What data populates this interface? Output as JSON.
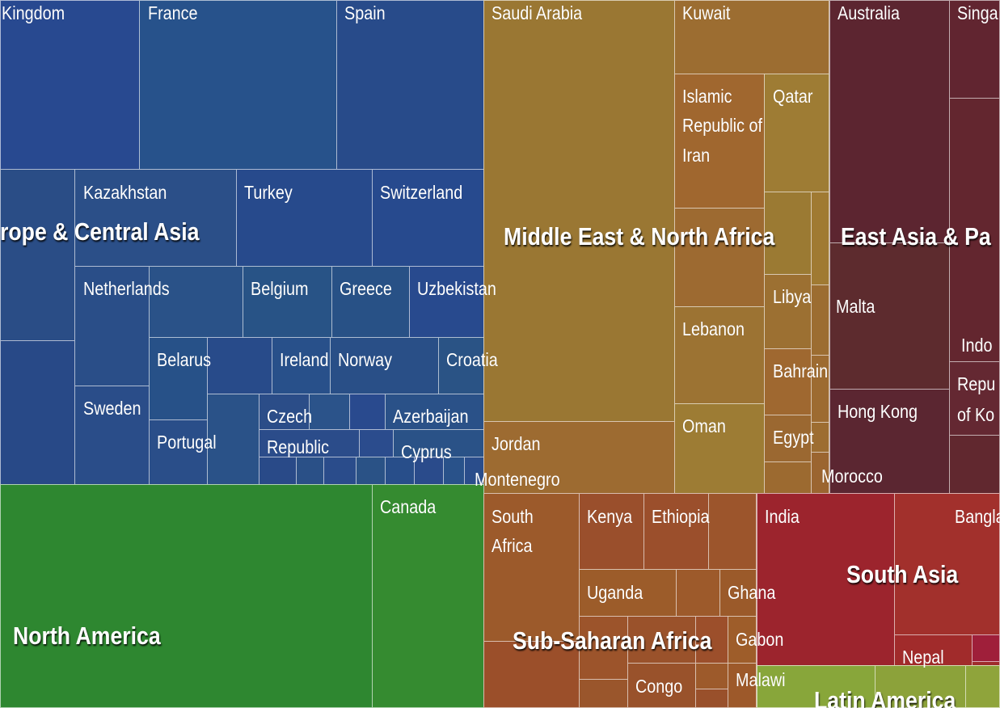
{
  "chart_data": {
    "type": "treemap",
    "title": "",
    "regions": [
      {
        "name": "Europe & Central Asia",
        "display": "rope & Central Asia",
        "countries": [
          "Kingdom",
          "France",
          "Spain",
          "Kazakhstan",
          "Turkey",
          "Switzerland",
          "Netherlands",
          "Belgium",
          "Greece",
          "Uzbekistan",
          "Sweden",
          "Belarus",
          "Ireland",
          "Norway",
          "Croatia",
          "Portugal",
          "Czech Republic",
          "Azerbaijan",
          "Cyprus",
          "Montenegro"
        ]
      },
      {
        "name": "Middle East & North Africa",
        "display": "Middle East & North Africa",
        "countries": [
          "Saudi Arabia",
          "Kuwait",
          "Islamic Republic of Iran",
          "Qatar",
          "Libya",
          "Lebanon",
          "Bahrain",
          "Oman",
          "Egypt",
          "Jordan",
          "Morocco"
        ]
      },
      {
        "name": "East Asia & Pacific",
        "display": "East Asia & Pa",
        "countries": [
          "Australia",
          "Singa",
          "Malta",
          "Indo",
          "Repu of Ko",
          "Hong Kong"
        ]
      },
      {
        "name": "North America",
        "display": "North America",
        "countries": [
          "Canada"
        ]
      },
      {
        "name": "Sub-Saharan Africa",
        "display": "Sub-Saharan Africa",
        "countries": [
          "South Africa",
          "Kenya",
          "Ethiopia",
          "Uganda",
          "Ghana",
          "Gabon",
          "Congo",
          "Malawi"
        ]
      },
      {
        "name": "South Asia",
        "display": "South Asia",
        "countries": [
          "India",
          "Bangla",
          "Nepal"
        ]
      },
      {
        "name": "Latin America",
        "display": "Latin America",
        "countries": []
      }
    ],
    "labels": {
      "kingdom": "Kingdom",
      "france": "France",
      "spain": "Spain",
      "kazakhstan": "Kazakhstan",
      "turkey": "Turkey",
      "switzerland": "Switzerland",
      "netherlands": "Netherlands",
      "belgium": "Belgium",
      "greece": "Greece",
      "uzbekistan": "Uzbekistan",
      "sweden": "Sweden",
      "belarus": "Belarus",
      "ireland": "Ireland",
      "norway": "Norway",
      "croatia": "Croatia",
      "portugal": "Portugal",
      "czech_line1": "Czech",
      "czech_line2": "Republic",
      "azerbaijan": "Azerbaijan",
      "cyprus": "Cyprus",
      "montenegro": "Montenegro",
      "saudi_arabia": "Saudi Arabia",
      "kuwait": "Kuwait",
      "iran": "Islamic Republic of Iran",
      "qatar": "Qatar",
      "libya": "Libya",
      "lebanon": "Lebanon",
      "bahrain": "Bahrain",
      "oman": "Oman",
      "egypt": "Egypt",
      "jordan": "Jordan",
      "morocco": "Morocco",
      "australia": "Australia",
      "singa": "Singa",
      "malta": "Malta",
      "indo": "Indo",
      "repu": "Repu",
      "of_ko": "of Ko",
      "hong_kong": "Hong Kong",
      "canada": "Canada",
      "south_africa": "South Africa",
      "kenya": "Kenya",
      "ethiopia": "Ethiopia",
      "uganda": "Uganda",
      "ghana": "Ghana",
      "gabon": "Gabon",
      "congo": "Congo",
      "malawi": "Malawi",
      "india": "India",
      "bangla": "Bangla",
      "nepal": "Nepal",
      "europe": "rope & Central Asia",
      "mena": "Middle East & North Africa",
      "east_asia": "East Asia & Pa",
      "north_america": "North America",
      "ssa": "Sub-Saharan Africa",
      "south_asia": "South Asia",
      "latin_america": "Latin America"
    },
    "colors": {
      "europe": "#2c4f8f",
      "mena": "#9c7832",
      "east_asia": "#5b2631",
      "north_america": "#2f8731",
      "ssa": "#99522b",
      "south_asia": "#9e2b2d",
      "latin_america": "#82a53a"
    }
  }
}
